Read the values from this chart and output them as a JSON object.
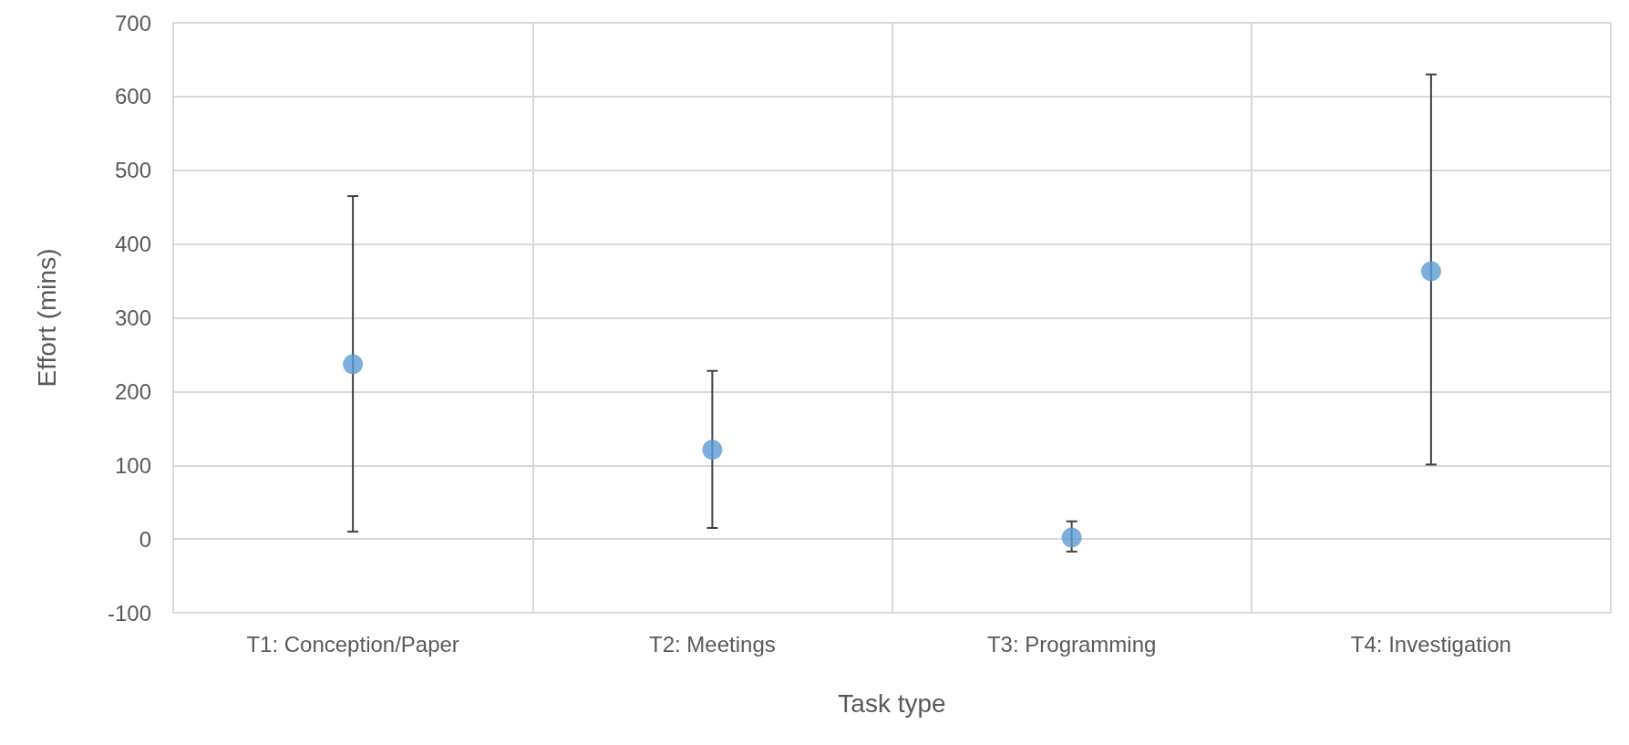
{
  "chart_data": {
    "type": "scatter",
    "xlabel": "Task type",
    "ylabel": "Effort (mins)",
    "categories": [
      "T1: Conception/Paper",
      "T2: Meetings",
      "T3: Programming",
      "T4: Investigation"
    ],
    "series": [
      {
        "color": "#5b9bd5",
        "values": [
          237,
          121,
          2,
          363
        ],
        "errors": [
          [
            10,
            465
          ],
          [
            15,
            228
          ],
          [
            -17,
            24
          ],
          [
            101,
            630
          ]
        ]
      }
    ],
    "ylim": [
      -100,
      700
    ],
    "yticks": [
      -100,
      0,
      100,
      200,
      300,
      400,
      500,
      600,
      700
    ],
    "grid": true,
    "marker": "circle"
  }
}
